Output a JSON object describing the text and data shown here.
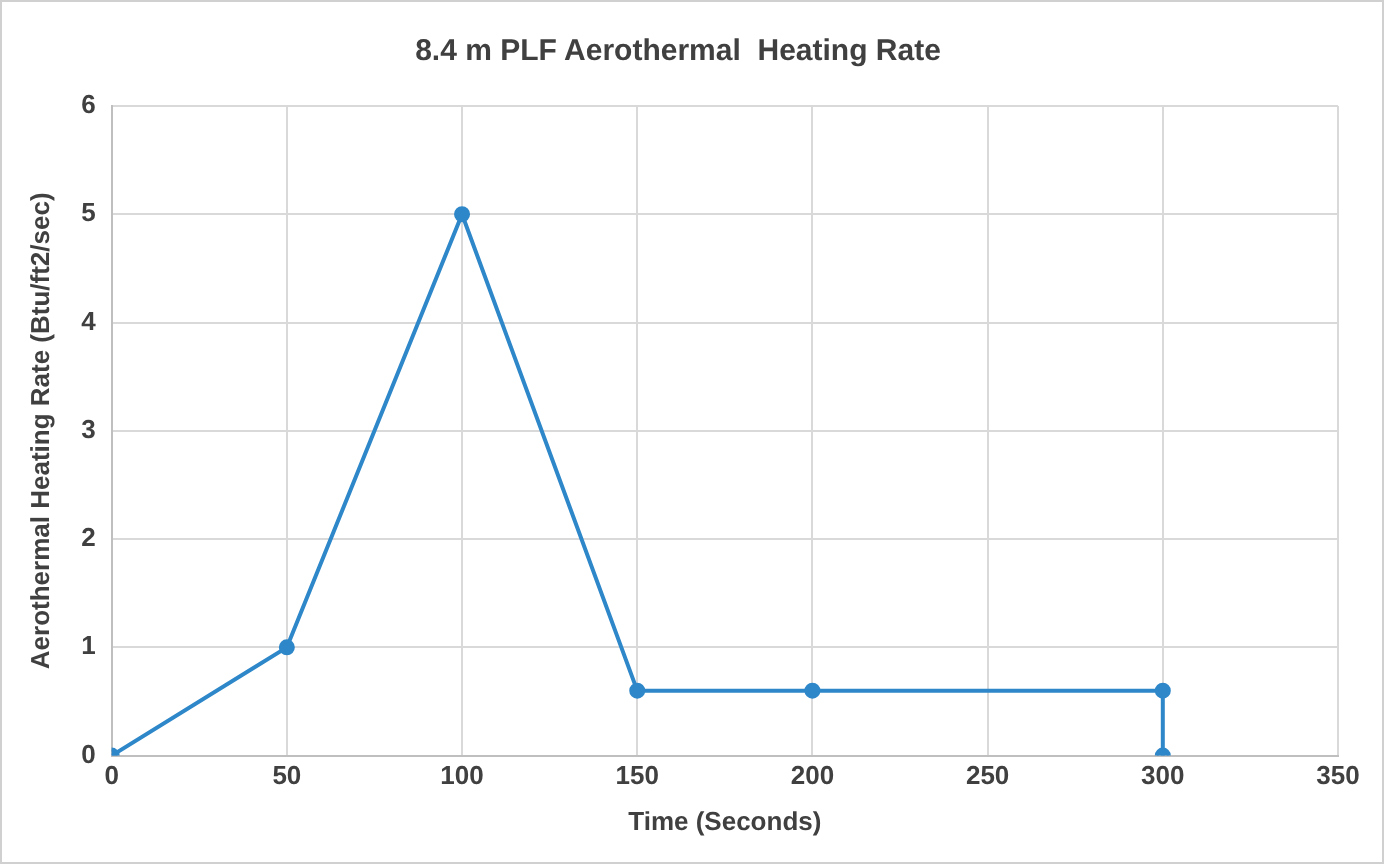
{
  "chart_data": {
    "type": "line",
    "title": "8.4 m PLF Aerothermal  Heating Rate",
    "xlabel": "Time (Seconds)",
    "ylabel": "Aerothermal Heating Rate (Btu/ft2/sec)",
    "series": [
      {
        "color": "#2e87c9",
        "x": [
          0,
          50,
          100,
          150,
          200,
          300,
          300
        ],
        "values": [
          0,
          1,
          5,
          0.6,
          0.6,
          0.6,
          0
        ]
      }
    ],
    "xlim": [
      0,
      350
    ],
    "xticks": [
      0,
      50,
      100,
      150,
      200,
      250,
      300,
      350
    ],
    "ylim": [
      0,
      6
    ],
    "yticks": [
      0,
      1,
      2,
      3,
      4,
      5,
      6
    ],
    "grid": true,
    "marker": "circle",
    "line_style": "solid",
    "legend": false
  }
}
